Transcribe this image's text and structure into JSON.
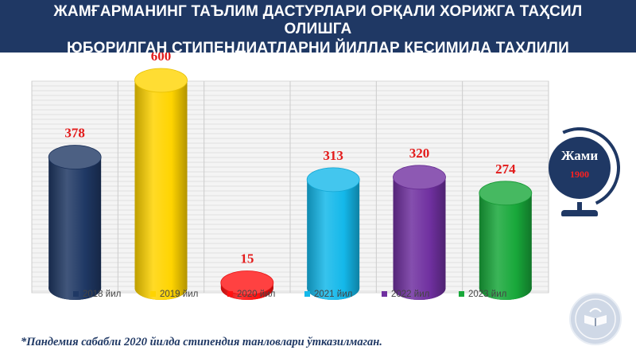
{
  "header": {
    "line1": "ЖАМҒАРМАНИНГ ТАЪЛИМ ДАСТУРЛАРИ ОРҚАЛИ ХОРИЖГА ТАҲСИЛ",
    "line2": "ОЛИШГА",
    "line3": "ЮБОРИЛГАН СТИПЕНДИАТЛАРНИ ЙИЛЛАР КЕСИМИДА ТАҲЛИЛИ"
  },
  "total": {
    "label": "Жами",
    "value": "1900"
  },
  "footnote": "*Пандемия сабабли 2020 йилда стипендия танловлари ўтказилмаган.",
  "chart_data": {
    "type": "bar",
    "categories": [
      "2018 йил",
      "2019 йил",
      "2020 йил",
      "2021 йил",
      "2022 йил",
      "2023 йил"
    ],
    "values": [
      378,
      600,
      15,
      313,
      320,
      274
    ],
    "colors": [
      "#1f3864",
      "#ffd400",
      "#ff1212",
      "#14b8ea",
      "#7030a0",
      "#18a83a"
    ],
    "value_label_color": "#e31b1b",
    "ylim": [
      0,
      650
    ],
    "grid": true,
    "legend_position": "bottom",
    "style": "3d-cylinder"
  }
}
